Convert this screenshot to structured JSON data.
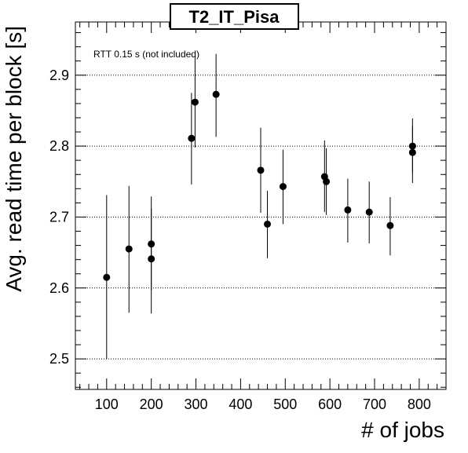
{
  "chart_data": {
    "type": "scatter",
    "title": "T2_IT_Pisa",
    "xlabel": "# of jobs",
    "ylabel": "Avg. read time per block [s]",
    "annotation": "RTT 0.15 s (not included)",
    "xlim": [
      30,
      860
    ],
    "ylim": [
      2.457,
      2.975
    ],
    "xticks": [
      100,
      200,
      300,
      400,
      500,
      600,
      700,
      800
    ],
    "yticks": [
      2.5,
      2.6,
      2.7,
      2.8,
      2.9
    ],
    "xtick_labels": [
      "100",
      "200",
      "300",
      "400",
      "500",
      "600",
      "700",
      "800"
    ],
    "ytick_labels": [
      "2.5",
      "2.6",
      "2.7",
      "2.8",
      "2.9"
    ],
    "grid": "horizontal dotted",
    "marker_color": "#000000",
    "points": [
      {
        "x": 100,
        "y": 2.615,
        "ylow": 2.5,
        "yhigh": 2.731
      },
      {
        "x": 150,
        "y": 2.655,
        "ylow": 2.565,
        "yhigh": 2.744
      },
      {
        "x": 200,
        "y": 2.641,
        "ylow": 2.564,
        "yhigh": 2.712
      },
      {
        "x": 200,
        "y": 2.662,
        "ylow": 2.597,
        "yhigh": 2.729
      },
      {
        "x": 290,
        "y": 2.811,
        "ylow": 2.746,
        "yhigh": 2.875
      },
      {
        "x": 298,
        "y": 2.862,
        "ylow": 2.798,
        "yhigh": 2.926
      },
      {
        "x": 345,
        "y": 2.873,
        "ylow": 2.813,
        "yhigh": 2.93
      },
      {
        "x": 445,
        "y": 2.766,
        "ylow": 2.706,
        "yhigh": 2.826
      },
      {
        "x": 460,
        "y": 2.69,
        "ylow": 2.642,
        "yhigh": 2.737
      },
      {
        "x": 495,
        "y": 2.743,
        "ylow": 2.69,
        "yhigh": 2.795
      },
      {
        "x": 588,
        "y": 2.757,
        "ylow": 2.707,
        "yhigh": 2.808
      },
      {
        "x": 592,
        "y": 2.75,
        "ylow": 2.703,
        "yhigh": 2.797
      },
      {
        "x": 640,
        "y": 2.71,
        "ylow": 2.664,
        "yhigh": 2.754
      },
      {
        "x": 688,
        "y": 2.707,
        "ylow": 2.663,
        "yhigh": 2.75
      },
      {
        "x": 735,
        "y": 2.688,
        "ylow": 2.646,
        "yhigh": 2.728
      },
      {
        "x": 785,
        "y": 2.8,
        "ylow": 2.762,
        "yhigh": 2.839
      },
      {
        "x": 785,
        "y": 2.791,
        "ylow": 2.748,
        "yhigh": 2.828
      }
    ]
  }
}
